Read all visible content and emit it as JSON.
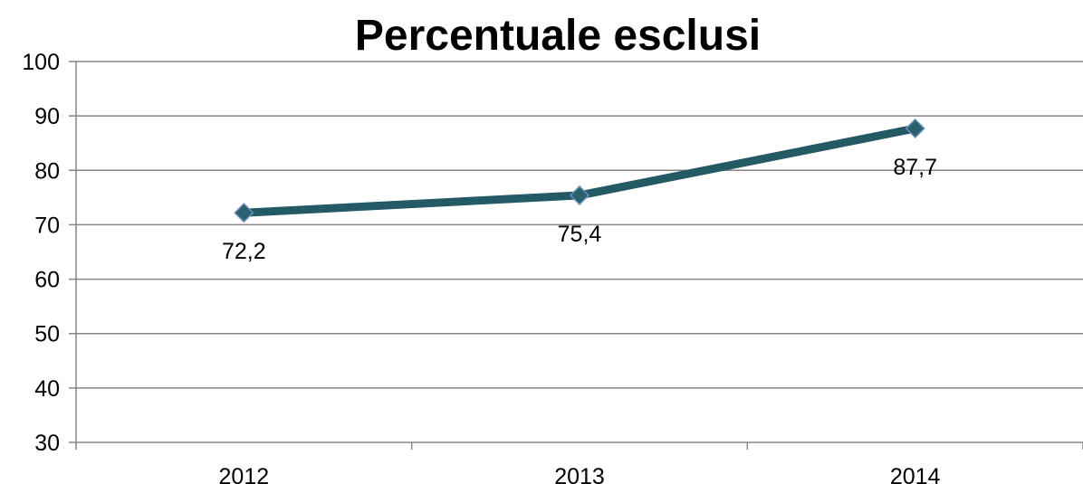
{
  "chart_data": {
    "type": "line",
    "title": "Percentuale esclusi",
    "categories": [
      "2012",
      "2013",
      "2014"
    ],
    "series": [
      {
        "values": [
          72.2,
          75.4,
          87.7
        ],
        "data_labels": [
          "72,2",
          "75,4",
          "87,7"
        ],
        "color": "#235a66",
        "marker": "diamond",
        "marker_color": "#2a5f6d"
      }
    ],
    "ylim": [
      30,
      100
    ],
    "yticks": [
      "30",
      "40",
      "50",
      "60",
      "70",
      "80",
      "90",
      "100"
    ],
    "grid": true,
    "gridline_color": "#868686",
    "legend": "none"
  }
}
